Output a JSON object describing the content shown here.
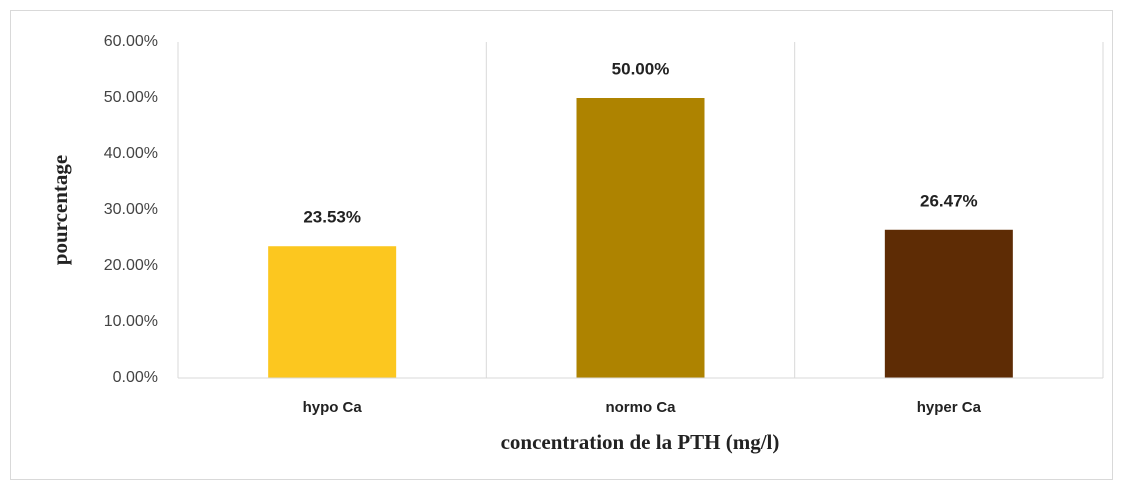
{
  "chart_data": {
    "type": "bar",
    "xlabel": "concentration de la PTH (mg/l)",
    "ylabel": "pourcentage",
    "categories": [
      "hypo Ca",
      "normo Ca",
      "hyper Ca"
    ],
    "values": [
      23.53,
      50.0,
      26.47
    ],
    "value_labels": [
      "23.53%",
      "50.00%",
      "26.47%"
    ],
    "colors": [
      "#fcc71f",
      "#ae8300",
      "#5e2c05"
    ],
    "ylim": [
      0,
      60
    ],
    "yticks": [
      {
        "value": 0,
        "label": "0.00%"
      },
      {
        "value": 10,
        "label": "10.00%"
      },
      {
        "value": 20,
        "label": "20.00%"
      },
      {
        "value": 30,
        "label": "30.00%"
      },
      {
        "value": 40,
        "label": "40.00%"
      },
      {
        "value": 50,
        "label": "50.00%"
      },
      {
        "value": 60,
        "label": "60.00%"
      }
    ],
    "grid": true
  }
}
